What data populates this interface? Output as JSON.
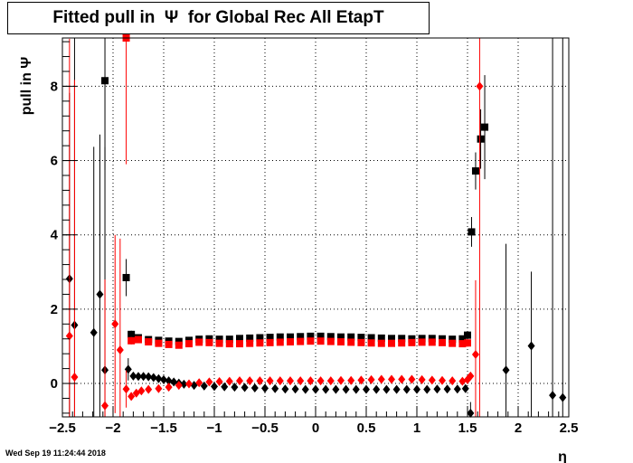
{
  "chart_data": {
    "type": "scatter",
    "title": "Fitted pull in  Ψ  for Global Rec All EtapT",
    "xlabel": "η",
    "ylabel": "pull in  Ψ",
    "xlim": [
      -2.5,
      2.5
    ],
    "ylim": [
      -0.9,
      9.3
    ],
    "grid": true,
    "legend": "none",
    "x_ticks": [
      -2.5,
      -2,
      -1.5,
      -1,
      -0.5,
      0,
      0.5,
      1,
      1.5,
      2,
      2.5
    ],
    "x_tick_labels": [
      "−2.5",
      "−2",
      "−1.5",
      "−1",
      "−0.5",
      "0",
      "0.5",
      "1",
      "1.5",
      "2",
      "2.5"
    ],
    "y_ticks": [
      0,
      2,
      4,
      6,
      8
    ],
    "y_tick_labels": [
      "0",
      "2",
      "4",
      "6",
      "8"
    ],
    "series": [
      {
        "color": "#000000",
        "marker": "square",
        "points": [
          {
            "x": -2.08,
            "y": 8.15,
            "err": 2.4
          },
          {
            "x": -1.87,
            "y": 2.85,
            "err": 0.5
          },
          {
            "x": -1.82,
            "y": 1.32,
            "err": 0.1
          },
          {
            "x": -1.75,
            "y": 1.23,
            "err": 0.05
          },
          {
            "x": -1.65,
            "y": 1.18,
            "err": 0.04
          },
          {
            "x": -1.55,
            "y": 1.16,
            "err": 0.03
          },
          {
            "x": -1.45,
            "y": 1.14,
            "err": 0.03
          },
          {
            "x": -1.35,
            "y": 1.13,
            "err": 0.03
          },
          {
            "x": -1.25,
            "y": 1.16,
            "err": 0.03
          },
          {
            "x": -1.15,
            "y": 1.19,
            "err": 0.03
          },
          {
            "x": -1.05,
            "y": 1.2,
            "err": 0.03
          },
          {
            "x": -0.95,
            "y": 1.19,
            "err": 0.03
          },
          {
            "x": -0.85,
            "y": 1.19,
            "err": 0.03
          },
          {
            "x": -0.75,
            "y": 1.21,
            "err": 0.03
          },
          {
            "x": -0.65,
            "y": 1.22,
            "err": 0.03
          },
          {
            "x": -0.55,
            "y": 1.23,
            "err": 0.03
          },
          {
            "x": -0.45,
            "y": 1.24,
            "err": 0.03
          },
          {
            "x": -0.35,
            "y": 1.25,
            "err": 0.03
          },
          {
            "x": -0.25,
            "y": 1.25,
            "err": 0.03
          },
          {
            "x": -0.15,
            "y": 1.26,
            "err": 0.03
          },
          {
            "x": -0.05,
            "y": 1.27,
            "err": 0.03
          },
          {
            "x": 0.05,
            "y": 1.27,
            "err": 0.03
          },
          {
            "x": 0.15,
            "y": 1.26,
            "err": 0.03
          },
          {
            "x": 0.25,
            "y": 1.25,
            "err": 0.03
          },
          {
            "x": 0.35,
            "y": 1.25,
            "err": 0.03
          },
          {
            "x": 0.45,
            "y": 1.24,
            "err": 0.03
          },
          {
            "x": 0.55,
            "y": 1.23,
            "err": 0.03
          },
          {
            "x": 0.65,
            "y": 1.22,
            "err": 0.03
          },
          {
            "x": 0.75,
            "y": 1.21,
            "err": 0.03
          },
          {
            "x": 0.85,
            "y": 1.21,
            "err": 0.03
          },
          {
            "x": 0.95,
            "y": 1.2,
            "err": 0.03
          },
          {
            "x": 1.05,
            "y": 1.21,
            "err": 0.03
          },
          {
            "x": 1.15,
            "y": 1.21,
            "err": 0.03
          },
          {
            "x": 1.25,
            "y": 1.2,
            "err": 0.03
          },
          {
            "x": 1.35,
            "y": 1.19,
            "err": 0.04
          },
          {
            "x": 1.45,
            "y": 1.2,
            "err": 0.05
          },
          {
            "x": 1.5,
            "y": 1.3,
            "err": 0.1
          },
          {
            "x": 1.54,
            "y": 4.08,
            "err": 0.4
          },
          {
            "x": 1.58,
            "y": 5.72,
            "err": 0.5
          },
          {
            "x": 1.63,
            "y": 6.58,
            "err": 0.8
          },
          {
            "x": 1.67,
            "y": 6.9,
            "err": 1.4
          }
        ]
      },
      {
        "color": "#000000",
        "marker": "diamond",
        "points": [
          {
            "x": -2.43,
            "y": 2.82,
            "err": 5.0
          },
          {
            "x": -2.38,
            "y": 1.57,
            "err": 8.0
          },
          {
            "x": -2.19,
            "y": 1.37,
            "err": 5.0
          },
          {
            "x": -2.13,
            "y": 2.4,
            "err": 4.3
          },
          {
            "x": -2.08,
            "y": 0.36,
            "err": 6.0
          },
          {
            "x": -1.85,
            "y": 0.38,
            "err": 0.3
          },
          {
            "x": -1.8,
            "y": 0.2,
            "err": 0.1
          },
          {
            "x": -1.75,
            "y": 0.19,
            "err": 0.05
          },
          {
            "x": -1.7,
            "y": 0.19,
            "err": 0.04
          },
          {
            "x": -1.65,
            "y": 0.18,
            "err": 0.03
          },
          {
            "x": -1.6,
            "y": 0.16,
            "err": 0.03
          },
          {
            "x": -1.55,
            "y": 0.13,
            "err": 0.03
          },
          {
            "x": -1.5,
            "y": 0.1,
            "err": 0.03
          },
          {
            "x": -1.45,
            "y": 0.07,
            "err": 0.03
          },
          {
            "x": -1.4,
            "y": 0.04,
            "err": 0.03
          },
          {
            "x": -1.35,
            "y": 0.01,
            "err": 0.03
          },
          {
            "x": -1.3,
            "y": -0.02,
            "err": 0.03
          },
          {
            "x": -1.2,
            "y": -0.05,
            "err": 0.03
          },
          {
            "x": -1.1,
            "y": -0.07,
            "err": 0.03
          },
          {
            "x": -1.0,
            "y": -0.08,
            "err": 0.03
          },
          {
            "x": -0.9,
            "y": -0.09,
            "err": 0.03
          },
          {
            "x": -0.8,
            "y": -0.1,
            "err": 0.03
          },
          {
            "x": -0.7,
            "y": -0.11,
            "err": 0.03
          },
          {
            "x": -0.6,
            "y": -0.12,
            "err": 0.03
          },
          {
            "x": -0.5,
            "y": -0.13,
            "err": 0.03
          },
          {
            "x": -0.4,
            "y": -0.14,
            "err": 0.03
          },
          {
            "x": -0.3,
            "y": -0.15,
            "err": 0.03
          },
          {
            "x": -0.2,
            "y": -0.15,
            "err": 0.03
          },
          {
            "x": -0.1,
            "y": -0.16,
            "err": 0.03
          },
          {
            "x": 0.0,
            "y": -0.16,
            "err": 0.03
          },
          {
            "x": 0.1,
            "y": -0.16,
            "err": 0.03
          },
          {
            "x": 0.2,
            "y": -0.16,
            "err": 0.03
          },
          {
            "x": 0.3,
            "y": -0.16,
            "err": 0.03
          },
          {
            "x": 0.4,
            "y": -0.16,
            "err": 0.03
          },
          {
            "x": 0.5,
            "y": -0.16,
            "err": 0.03
          },
          {
            "x": 0.6,
            "y": -0.16,
            "err": 0.03
          },
          {
            "x": 0.7,
            "y": -0.16,
            "err": 0.03
          },
          {
            "x": 0.8,
            "y": -0.16,
            "err": 0.03
          },
          {
            "x": 0.9,
            "y": -0.16,
            "err": 0.03
          },
          {
            "x": 1.0,
            "y": -0.16,
            "err": 0.03
          },
          {
            "x": 1.1,
            "y": -0.16,
            "err": 0.03
          },
          {
            "x": 1.2,
            "y": -0.15,
            "err": 0.03
          },
          {
            "x": 1.3,
            "y": -0.15,
            "err": 0.03
          },
          {
            "x": 1.4,
            "y": -0.15,
            "err": 0.03
          },
          {
            "x": 1.48,
            "y": -0.14,
            "err": 0.05
          },
          {
            "x": 1.53,
            "y": -0.8,
            "err": 0.3
          },
          {
            "x": 1.88,
            "y": 0.36,
            "err": 3.4
          },
          {
            "x": 2.13,
            "y": 1.01,
            "err": 2.0
          },
          {
            "x": 2.34,
            "y": -0.32,
            "err": 10.0
          },
          {
            "x": 2.44,
            "y": -0.38,
            "err": 10.0
          }
        ]
      },
      {
        "color": "#ff0000",
        "marker": "square",
        "points": [
          {
            "x": -1.87,
            "y": 9.3,
            "err": 3.4
          },
          {
            "x": -1.82,
            "y": 1.15,
            "err": 0.1
          },
          {
            "x": -1.75,
            "y": 1.18,
            "err": 0.05
          },
          {
            "x": -1.65,
            "y": 1.12,
            "err": 0.04
          },
          {
            "x": -1.55,
            "y": 1.08,
            "err": 0.03
          },
          {
            "x": -1.45,
            "y": 1.05,
            "err": 0.03
          },
          {
            "x": -1.35,
            "y": 1.03,
            "err": 0.03
          },
          {
            "x": -1.25,
            "y": 1.07,
            "err": 0.03
          },
          {
            "x": -1.15,
            "y": 1.11,
            "err": 0.03
          },
          {
            "x": -1.05,
            "y": 1.1,
            "err": 0.03
          },
          {
            "x": -0.95,
            "y": 1.08,
            "err": 0.03
          },
          {
            "x": -0.85,
            "y": 1.07,
            "err": 0.03
          },
          {
            "x": -0.75,
            "y": 1.07,
            "err": 0.03
          },
          {
            "x": -0.65,
            "y": 1.08,
            "err": 0.03
          },
          {
            "x": -0.55,
            "y": 1.09,
            "err": 0.03
          },
          {
            "x": -0.45,
            "y": 1.1,
            "err": 0.03
          },
          {
            "x": -0.35,
            "y": 1.11,
            "err": 0.03
          },
          {
            "x": -0.25,
            "y": 1.12,
            "err": 0.03
          },
          {
            "x": -0.15,
            "y": 1.13,
            "err": 0.03
          },
          {
            "x": -0.05,
            "y": 1.14,
            "err": 0.03
          },
          {
            "x": 0.05,
            "y": 1.14,
            "err": 0.03
          },
          {
            "x": 0.15,
            "y": 1.13,
            "err": 0.03
          },
          {
            "x": 0.25,
            "y": 1.12,
            "err": 0.03
          },
          {
            "x": 0.35,
            "y": 1.11,
            "err": 0.03
          },
          {
            "x": 0.45,
            "y": 1.1,
            "err": 0.03
          },
          {
            "x": 0.55,
            "y": 1.09,
            "err": 0.03
          },
          {
            "x": 0.65,
            "y": 1.08,
            "err": 0.03
          },
          {
            "x": 0.75,
            "y": 1.08,
            "err": 0.03
          },
          {
            "x": 0.85,
            "y": 1.09,
            "err": 0.03
          },
          {
            "x": 0.95,
            "y": 1.1,
            "err": 0.03
          },
          {
            "x": 1.05,
            "y": 1.11,
            "err": 0.03
          },
          {
            "x": 1.15,
            "y": 1.11,
            "err": 0.03
          },
          {
            "x": 1.25,
            "y": 1.1,
            "err": 0.03
          },
          {
            "x": 1.35,
            "y": 1.08,
            "err": 0.04
          },
          {
            "x": 1.45,
            "y": 1.07,
            "err": 0.05
          },
          {
            "x": 1.5,
            "y": 1.09,
            "err": 0.1
          }
        ]
      },
      {
        "color": "#ff0000",
        "marker": "diamond",
        "points": [
          {
            "x": -2.43,
            "y": 1.28,
            "err": 8.0
          },
          {
            "x": -2.38,
            "y": 0.17,
            "err": 8.0
          },
          {
            "x": -2.08,
            "y": -0.6,
            "err": 3.4
          },
          {
            "x": -1.98,
            "y": 1.6,
            "err": 2.4
          },
          {
            "x": -1.93,
            "y": 0.9,
            "err": 3.0
          },
          {
            "x": -1.87,
            "y": -0.15,
            "err": 0.5
          },
          {
            "x": -1.82,
            "y": -0.35,
            "err": 0.1
          },
          {
            "x": -1.77,
            "y": -0.26,
            "err": 0.05
          },
          {
            "x": -1.72,
            "y": -0.2,
            "err": 0.04
          },
          {
            "x": -1.65,
            "y": -0.16,
            "err": 0.03
          },
          {
            "x": -1.55,
            "y": -0.14,
            "err": 0.03
          },
          {
            "x": -1.45,
            "y": -0.1,
            "err": 0.03
          },
          {
            "x": -1.35,
            "y": -0.05,
            "err": 0.03
          },
          {
            "x": -1.25,
            "y": -0.01,
            "err": 0.03
          },
          {
            "x": -1.15,
            "y": 0.02,
            "err": 0.03
          },
          {
            "x": -1.05,
            "y": 0.04,
            "err": 0.03
          },
          {
            "x": -0.95,
            "y": 0.05,
            "err": 0.03
          },
          {
            "x": -0.85,
            "y": 0.06,
            "err": 0.03
          },
          {
            "x": -0.75,
            "y": 0.07,
            "err": 0.03
          },
          {
            "x": -0.65,
            "y": 0.07,
            "err": 0.03
          },
          {
            "x": -0.55,
            "y": 0.07,
            "err": 0.03
          },
          {
            "x": -0.45,
            "y": 0.07,
            "err": 0.03
          },
          {
            "x": -0.35,
            "y": 0.07,
            "err": 0.03
          },
          {
            "x": -0.25,
            "y": 0.07,
            "err": 0.03
          },
          {
            "x": -0.15,
            "y": 0.07,
            "err": 0.03
          },
          {
            "x": -0.05,
            "y": 0.07,
            "err": 0.03
          },
          {
            "x": 0.05,
            "y": 0.07,
            "err": 0.03
          },
          {
            "x": 0.15,
            "y": 0.07,
            "err": 0.03
          },
          {
            "x": 0.25,
            "y": 0.08,
            "err": 0.03
          },
          {
            "x": 0.35,
            "y": 0.08,
            "err": 0.03
          },
          {
            "x": 0.45,
            "y": 0.09,
            "err": 0.03
          },
          {
            "x": 0.55,
            "y": 0.1,
            "err": 0.03
          },
          {
            "x": 0.65,
            "y": 0.11,
            "err": 0.03
          },
          {
            "x": 0.75,
            "y": 0.11,
            "err": 0.03
          },
          {
            "x": 0.85,
            "y": 0.11,
            "err": 0.03
          },
          {
            "x": 0.95,
            "y": 0.11,
            "err": 0.03
          },
          {
            "x": 1.05,
            "y": 0.1,
            "err": 0.03
          },
          {
            "x": 1.15,
            "y": 0.09,
            "err": 0.03
          },
          {
            "x": 1.25,
            "y": 0.08,
            "err": 0.03
          },
          {
            "x": 1.35,
            "y": 0.07,
            "err": 0.04
          },
          {
            "x": 1.45,
            "y": 0.06,
            "err": 0.05
          },
          {
            "x": 1.5,
            "y": 0.1,
            "err": 0.05
          },
          {
            "x": 1.53,
            "y": 0.2,
            "err": 0.1
          },
          {
            "x": 1.58,
            "y": 0.78,
            "err": 2.0
          },
          {
            "x": 1.62,
            "y": 8.0,
            "err": 10.0
          }
        ]
      }
    ]
  },
  "footer": {
    "timestamp": "Wed Sep 19 11:24:44 2018"
  }
}
